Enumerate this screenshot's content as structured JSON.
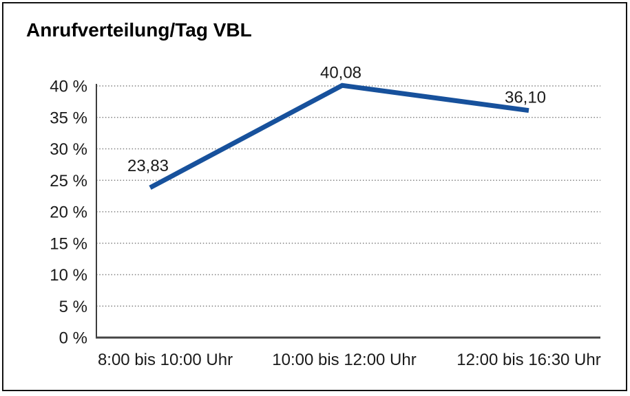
{
  "page": {
    "background_color": "#ffffff",
    "frame_border_color": "#111111"
  },
  "chart_data": {
    "type": "line",
    "title": "Anrufverteilung/Tag VBL",
    "categories": [
      "8:00 bis 10:00 Uhr",
      "10:00 bis 12:00 Uhr",
      "12:00 bis 16:30 Uhr"
    ],
    "series": [
      {
        "values": [
          23.83,
          40.08,
          36.1
        ],
        "data_labels": [
          "23,83",
          "40,08",
          "36,10"
        ],
        "color": "#17519C"
      }
    ],
    "xlabel": "",
    "ylabel": "",
    "ylim": [
      0,
      40
    ],
    "y_tick_step": 5,
    "y_tick_labels": [
      "0 %",
      "5 %",
      "10 %",
      "15 %",
      "20 %",
      "25 %",
      "30 %",
      "35 %",
      "40 %"
    ],
    "grid": "horizontal dotted",
    "grid_color": "#808080",
    "axis_color": "#444444",
    "legend": "none"
  }
}
